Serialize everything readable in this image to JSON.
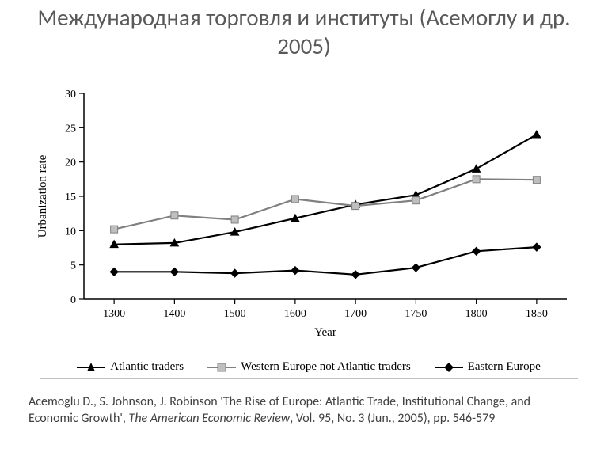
{
  "title": "Международная торговля и институты (Асемоглу и др. 2005)",
  "chart": {
    "type": "line",
    "ylabel": "Urbanization rate",
    "xlabel": "Year",
    "label_fontsize": 15,
    "tick_fontsize": 14,
    "label_font": "Times New Roman",
    "ylim": [
      0,
      30
    ],
    "ytick_step": 5,
    "categories": [
      "1300",
      "1400",
      "1500",
      "1600",
      "1700",
      "1750",
      "1800",
      "1850"
    ],
    "axis_color": "#000000",
    "background_color": "#ffffff",
    "line_width": 2.2,
    "series": [
      {
        "name": "Atlantic traders",
        "marker": "triangle",
        "color": "#000000",
        "values": [
          8.0,
          8.2,
          9.8,
          11.8,
          13.8,
          15.2,
          19.0,
          24.0
        ]
      },
      {
        "name": "Western Europe not Atlantic traders",
        "marker": "square-gray",
        "color": "#808080",
        "values": [
          10.2,
          12.2,
          11.6,
          14.6,
          13.6,
          14.4,
          17.5,
          17.4
        ]
      },
      {
        "name": "Eastern Europe",
        "marker": "diamond",
        "color": "#000000",
        "values": [
          4.0,
          4.0,
          3.8,
          4.2,
          3.6,
          4.6,
          7.0,
          7.6
        ]
      }
    ]
  },
  "legend": {
    "items": [
      {
        "label": "Atlantic traders",
        "marker": "triangle",
        "line_color": "#000000"
      },
      {
        "label": "Western Europe not Atlantic traders",
        "marker": "square-gray",
        "line_color": "#808080"
      },
      {
        "label": "Eastern Europe",
        "marker": "diamond",
        "line_color": "#000000"
      }
    ]
  },
  "citation": {
    "prefix": "Acemoglu D., S. Johnson, J. Robinson 'The  Rise of Europe: Atlantic Trade, Institutional Change, and Economic Growth',  ",
    "journal_italic": "The American Economic Review",
    "suffix": ", Vol. 95, No. 3 (Jun., 2005), pp. 546-579"
  }
}
